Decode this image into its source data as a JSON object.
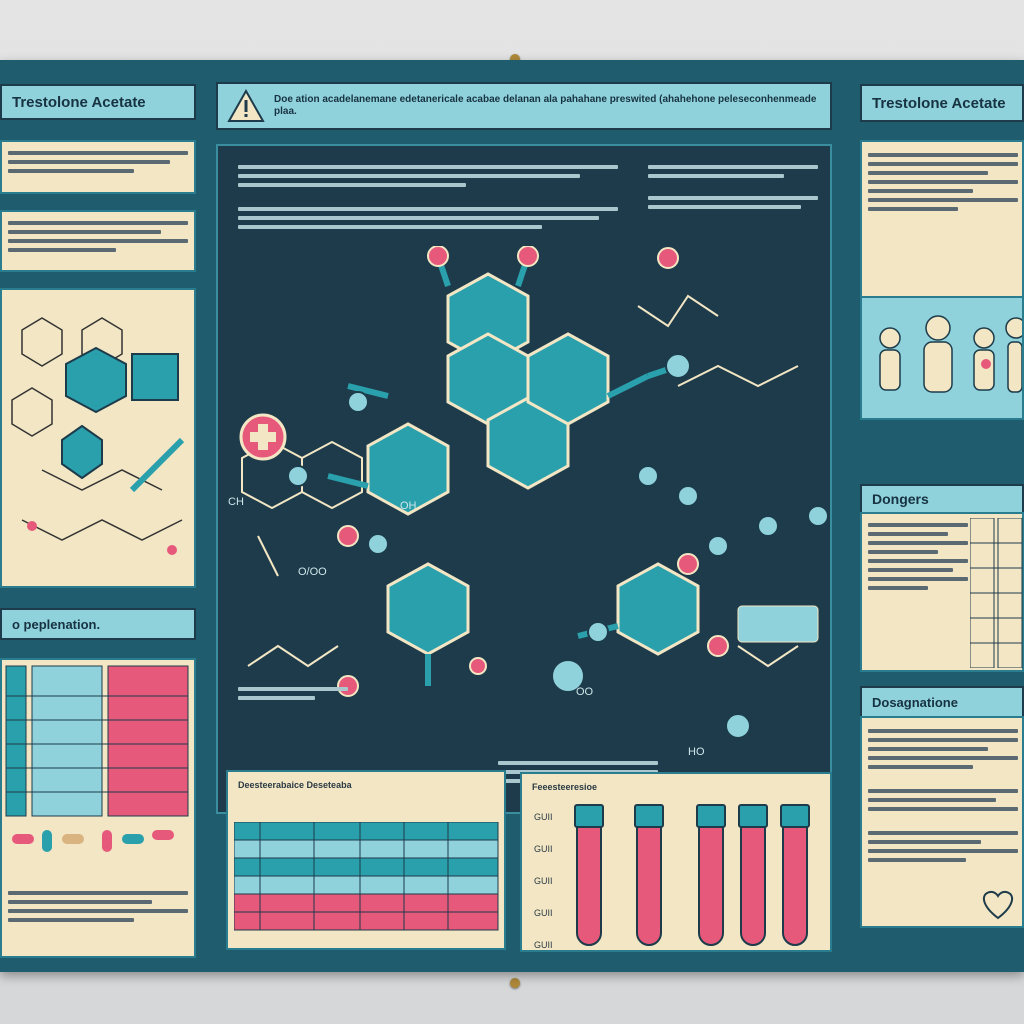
{
  "poster": {
    "left_title": "Trestolone Acetate",
    "warning_text": "Doe ation acadelanemane edetanericale acabae delanan ala pahahane preswited (ahahehone peleseconhenmeade plaa.",
    "right_title": "Trestolone Acetate",
    "left_section": "o peplenation.",
    "dangers_title": "Dongers",
    "doses_title": "Dosagnatione",
    "center_chem_label_1": "O/OO",
    "center_chem_label_2": "OH",
    "center_chem_label_3": "CH",
    "center_chem_label_4": "OO",
    "center_chem_label_5": "HO",
    "bottom_table_title": "Deesteerabaice Deseteaba",
    "bottom_tubes_title": "Feeesteeresioe",
    "tube_axis": [
      "GUII",
      "GUII",
      "GUII",
      "GUII",
      "GUII"
    ]
  },
  "colors": {
    "poster": "#1f5c6e",
    "panel": "#f2e6c4",
    "teal": "#2aa0ad",
    "pink": "#e7597a",
    "dark": "#1d3b4a"
  }
}
